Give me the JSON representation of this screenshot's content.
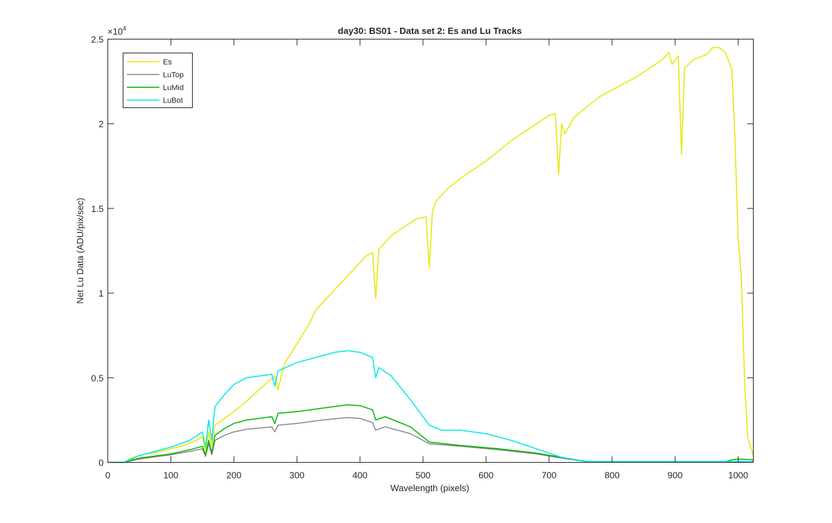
{
  "chart_data": {
    "type": "line",
    "title": "day30: BS01 - Data set 2: Es and Lu Tracks",
    "xlabel": "Wavelength (pixels)",
    "ylabel": "Net Lu Data (ADU/pix/sec)",
    "y_exponent_label": "×10",
    "y_exponent_power": "4",
    "xlim": [
      0,
      1024
    ],
    "ylim": [
      0,
      25000
    ],
    "x_ticks": [
      0,
      100,
      200,
      300,
      400,
      500,
      600,
      700,
      800,
      900,
      1000
    ],
    "x_tick_labels": [
      "0",
      "100",
      "200",
      "300",
      "400",
      "500",
      "600",
      "700",
      "800",
      "900",
      "1000"
    ],
    "y_ticks": [
      0,
      5000,
      10000,
      15000,
      20000,
      25000
    ],
    "y_tick_labels": [
      "0",
      "0.5",
      "1",
      "1.5",
      "2",
      "2.5"
    ],
    "legend_position": "top-left",
    "grid": false,
    "series": [
      {
        "name": "Es",
        "color": "#e6e600",
        "x": [
          0,
          25,
          40,
          60,
          80,
          100,
          120,
          140,
          150,
          155,
          160,
          165,
          170,
          185,
          200,
          220,
          240,
          255,
          265,
          270,
          280,
          300,
          320,
          330,
          340,
          360,
          380,
          400,
          410,
          420,
          425,
          430,
          450,
          470,
          490,
          505,
          510,
          515,
          520,
          540,
          560,
          580,
          600,
          620,
          640,
          660,
          680,
          700,
          710,
          715,
          720,
          725,
          740,
          760,
          780,
          800,
          820,
          840,
          860,
          880,
          890,
          895,
          905,
          910,
          915,
          930,
          950,
          960,
          970,
          980,
          990,
          995,
          1000,
          1005,
          1010,
          1015,
          1024
        ],
        "values": [
          0,
          0,
          300,
          500,
          600,
          800,
          1000,
          1300,
          1500,
          700,
          1800,
          1000,
          2200,
          2600,
          3000,
          3600,
          4300,
          4800,
          5100,
          4300,
          5800,
          7000,
          8200,
          9000,
          9400,
          10200,
          11000,
          11800,
          12200,
          12400,
          9700,
          12600,
          13400,
          13900,
          14400,
          14500,
          11500,
          14800,
          15400,
          16200,
          16800,
          17300,
          17800,
          18400,
          19000,
          19500,
          20000,
          20500,
          20600,
          17000,
          20000,
          19400,
          20400,
          21000,
          21600,
          22000,
          22400,
          22800,
          23300,
          23800,
          24200,
          23500,
          24000,
          18200,
          23300,
          23800,
          24100,
          24500,
          24500,
          24200,
          23200,
          19000,
          13200,
          11000,
          5000,
          1500,
          400
        ]
      },
      {
        "name": "LuTop",
        "color": "#888888",
        "x": [
          0,
          25,
          50,
          80,
          100,
          130,
          150,
          155,
          160,
          165,
          170,
          185,
          200,
          220,
          260,
          265,
          270,
          300,
          340,
          380,
          400,
          420,
          425,
          440,
          480,
          510,
          560,
          620,
          680,
          720,
          760,
          1024
        ],
        "values": [
          0,
          0,
          200,
          350,
          450,
          650,
          800,
          350,
          1100,
          450,
          1300,
          1600,
          1800,
          1950,
          2100,
          1800,
          2200,
          2300,
          2500,
          2650,
          2600,
          2350,
          1900,
          2100,
          1700,
          1100,
          950,
          750,
          500,
          250,
          40,
          40
        ]
      },
      {
        "name": "LuMid",
        "color": "#00b300",
        "x": [
          0,
          25,
          50,
          80,
          100,
          130,
          150,
          155,
          160,
          165,
          170,
          185,
          200,
          220,
          260,
          265,
          270,
          300,
          340,
          380,
          400,
          420,
          425,
          440,
          480,
          510,
          560,
          620,
          680,
          720,
          760,
          980,
          990,
          1000,
          1024
        ],
        "values": [
          0,
          0,
          250,
          400,
          500,
          750,
          950,
          450,
          1300,
          550,
          1600,
          2000,
          2300,
          2500,
          2700,
          2300,
          2900,
          3000,
          3200,
          3400,
          3350,
          3100,
          2500,
          2700,
          2100,
          1200,
          1000,
          800,
          550,
          300,
          50,
          50,
          150,
          200,
          150
        ]
      },
      {
        "name": "LuBot",
        "color": "#00e6e6",
        "x": [
          0,
          25,
          50,
          80,
          100,
          130,
          150,
          155,
          160,
          165,
          170,
          185,
          200,
          220,
          240,
          260,
          265,
          270,
          300,
          340,
          360,
          380,
          400,
          420,
          425,
          430,
          450,
          480,
          510,
          530,
          560,
          600,
          640,
          680,
          720,
          760,
          1024
        ],
        "values": [
          0,
          0,
          400,
          700,
          900,
          1300,
          1800,
          900,
          2500,
          1300,
          3300,
          4000,
          4600,
          5000,
          5100,
          5200,
          4500,
          5400,
          5900,
          6300,
          6500,
          6600,
          6500,
          6200,
          5000,
          5600,
          5100,
          3700,
          2200,
          1900,
          1900,
          1700,
          1300,
          800,
          300,
          50,
          50
        ]
      }
    ]
  }
}
